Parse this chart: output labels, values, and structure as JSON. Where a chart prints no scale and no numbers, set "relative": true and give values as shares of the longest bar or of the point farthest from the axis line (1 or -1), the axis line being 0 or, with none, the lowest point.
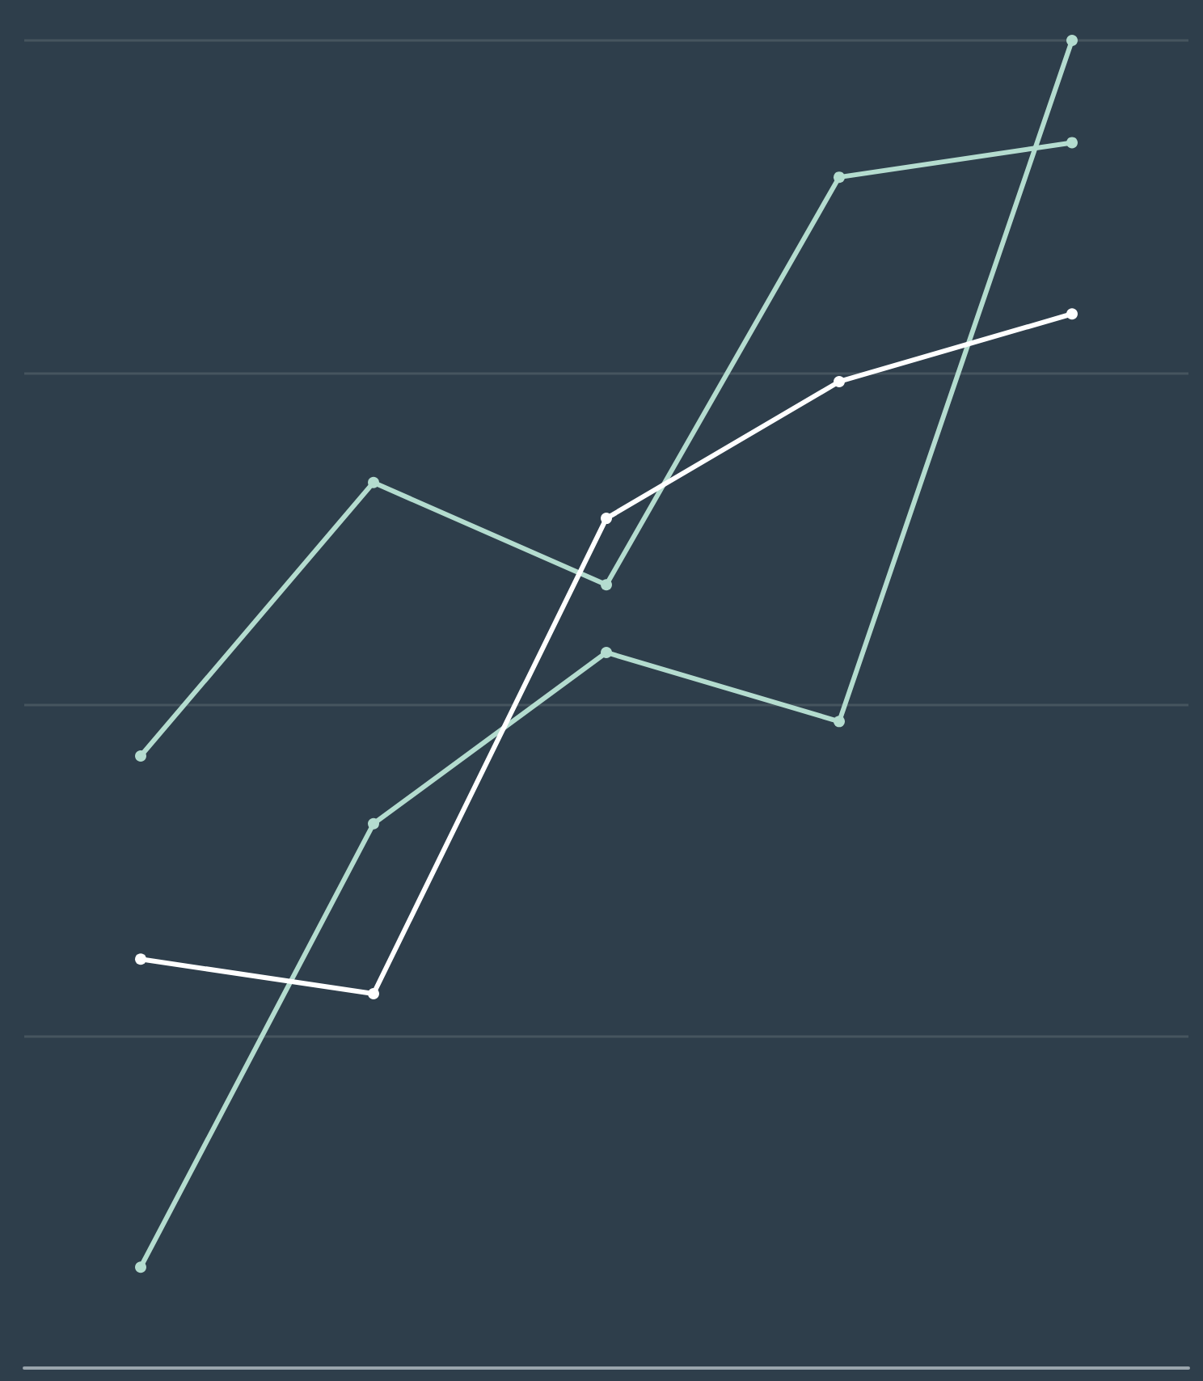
{
  "chart_data": {
    "type": "line",
    "relative": true,
    "categories": [
      null,
      null,
      null,
      null,
      null
    ],
    "series": [
      {
        "color": "#b4dccf",
        "values": [
          0.461,
          0.667,
          0.59,
          0.897,
          0.923
        ]
      },
      {
        "color": "#b4dccf",
        "values": [
          0.076,
          0.41,
          0.539,
          0.487,
          1.0
        ]
      },
      {
        "color": "#ffffff",
        "values": [
          0.308,
          0.282,
          0.64,
          0.743,
          0.794
        ]
      }
    ],
    "grid": "y",
    "marker": "circle",
    "line_style": "solid"
  }
}
